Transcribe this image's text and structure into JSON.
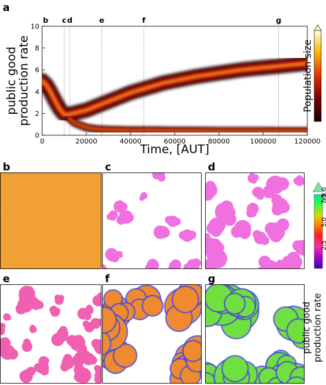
{
  "figure": {
    "panel_labels": [
      "a",
      "b",
      "c",
      "d",
      "e",
      "f",
      "g"
    ]
  },
  "chart_data": [
    {
      "type": "heatmap",
      "panel": "a",
      "title": "",
      "xlabel": "Time, [AUT]",
      "ylabel": [
        "public good",
        "production rate"
      ],
      "xlim": [
        0,
        120000
      ],
      "ylim": [
        0,
        10
      ],
      "x_ticks": [
        0,
        20000,
        40000,
        60000,
        80000,
        100000,
        120000
      ],
      "y_ticks": [
        0,
        2,
        4,
        6,
        8,
        10
      ],
      "colorbar_label": "Population size",
      "event_markers": [
        {
          "label": "b",
          "x": 0
        },
        {
          "label": "c",
          "x": 10000
        },
        {
          "label": "d",
          "x": 12500
        },
        {
          "label": "e",
          "x": 27000
        },
        {
          "label": "f",
          "x": 46000
        },
        {
          "label": "g",
          "x": 107000
        }
      ],
      "series": [
        {
          "name": "",
          "x": [
            0,
            2000,
            4000,
            6000,
            8000,
            10000,
            11000,
            12000,
            14000,
            16000,
            20000,
            25000,
            30000,
            35000,
            40000,
            45000,
            50000,
            55000,
            60000,
            65000,
            70000,
            75000,
            80000,
            85000,
            90000,
            95000,
            100000,
            105000,
            110000,
            115000,
            120000
          ],
          "y": [
            5.0,
            4.6,
            3.9,
            3.1,
            2.4,
            1.9,
            1.85,
            1.9,
            2.0,
            2.1,
            2.3,
            2.7,
            3.1,
            3.5,
            3.9,
            4.2,
            4.5,
            4.8,
            5.0,
            5.2,
            5.4,
            5.55,
            5.7,
            5.85,
            6.0,
            6.1,
            6.2,
            6.3,
            6.4,
            6.5,
            6.6
          ]
        },
        {
          "name": "",
          "x": [
            12000,
            15000,
            20000,
            25000,
            30000,
            40000,
            50000,
            60000,
            70000,
            80000,
            90000,
            100000,
            110000,
            120000
          ],
          "y": [
            1.6,
            1.1,
            0.7,
            0.55,
            0.5,
            0.45,
            0.45,
            0.42,
            0.42,
            0.4,
            0.4,
            0.4,
            0.38,
            0.38
          ]
        }
      ]
    },
    {
      "type": "heatmap",
      "panel": "colorbar",
      "ylabel": [
        "public good",
        "production rate"
      ],
      "ylim": [
        0,
        8
      ],
      "y_ticks": [
        "2.5",
        "5.0",
        "7.5",
        ">8.0"
      ],
      "colors": [
        "#3a00c8",
        "#a000d0",
        "#ff2ea0",
        "#ff2020",
        "#ff8a00",
        "#d8d800",
        "#30ff40",
        "#00e8a0"
      ]
    }
  ],
  "snapshots": [
    {
      "label": "b",
      "dominant_color": "#f0a030"
    },
    {
      "label": "c",
      "dominant_color": "#f070e0"
    },
    {
      "label": "d",
      "dominant_color": "#f070e0"
    },
    {
      "label": "e",
      "dominant_color": "#f060b0"
    },
    {
      "label": "f",
      "dominant_color": "#f08a30"
    },
    {
      "label": "g",
      "dominant_color": "#70e040"
    }
  ]
}
